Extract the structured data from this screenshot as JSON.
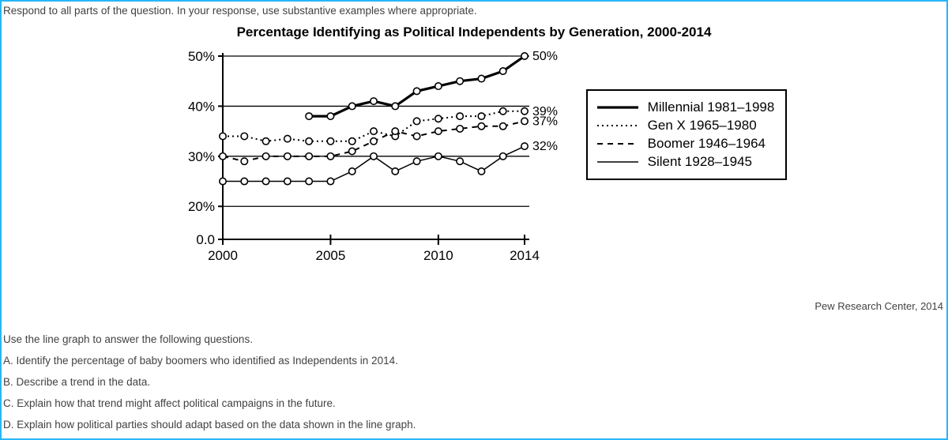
{
  "instruction": "Respond to all parts of the question. In your response, use substantive examples where appropriate.",
  "chart": {
    "type": "line",
    "title": "Percentage Identifying as Political Independents by Generation, 2000-2014",
    "title_fontsize": 17,
    "background_color": "#ffffff",
    "axis_color": "#000000",
    "axis_width": 2,
    "marker_radius": 4.2,
    "marker_fill": "#ffffff",
    "marker_stroke": "#000000",
    "x": {
      "years": [
        2000,
        2001,
        2002,
        2003,
        2004,
        2005,
        2006,
        2007,
        2008,
        2009,
        2010,
        2011,
        2012,
        2013,
        2014
      ],
      "ticks": [
        2000,
        2005,
        2010,
        2014
      ],
      "tick_labels": [
        "2000",
        "2005",
        "2010",
        "2014"
      ],
      "label_fontsize": 17
    },
    "y": {
      "min": 0,
      "max": 50,
      "ticks": [
        0,
        20,
        30,
        40,
        50
      ],
      "tick_labels": [
        "0.0",
        "20%",
        "30%",
        "40%",
        "50%"
      ],
      "gridlines": [
        20,
        30,
        40,
        50
      ],
      "grid_color": "#000000",
      "grid_width": 1.3,
      "label_fontsize": 17
    },
    "series": [
      {
        "name": "Millennial 1981–1998",
        "style": "solid_thick",
        "line_width": 3.2,
        "dash": "",
        "end_label": "50%",
        "values": [
          null,
          null,
          null,
          null,
          38,
          38,
          40,
          41,
          40,
          43,
          44,
          45,
          45.5,
          47,
          50
        ]
      },
      {
        "name": "Gen X 1965–1980",
        "style": "dotted",
        "line_width": 2,
        "dash": "2,4",
        "end_label": "39%",
        "values": [
          34,
          34,
          33,
          33.5,
          33,
          33,
          33,
          35,
          34,
          37,
          37.5,
          38,
          38,
          39,
          39
        ]
      },
      {
        "name": "Boomer 1946–1964",
        "style": "dashed",
        "line_width": 2,
        "dash": "7,6",
        "end_label": "37%",
        "values": [
          30,
          29,
          30,
          30,
          30,
          30,
          31,
          33,
          35,
          34,
          35,
          35.5,
          36,
          36,
          37
        ]
      },
      {
        "name": "Silent 1928–1945",
        "style": "solid_thin",
        "line_width": 1.5,
        "dash": "",
        "end_label": "32%",
        "values": [
          25,
          25,
          25,
          25,
          25,
          25,
          27,
          30,
          27,
          29,
          30,
          29,
          27,
          30,
          32
        ]
      }
    ]
  },
  "source": "Pew Research Center, 2014",
  "questions": {
    "lead": "Use the line graph to answer the following questions.",
    "items": [
      "A. Identify the percentage of baby boomers who identified as Independents in 2014.",
      "B. Describe a trend in the data.",
      "C. Explain how that trend might affect political campaigns in the future.",
      "D. Explain how political parties should adapt based on the data shown in the line graph."
    ]
  }
}
